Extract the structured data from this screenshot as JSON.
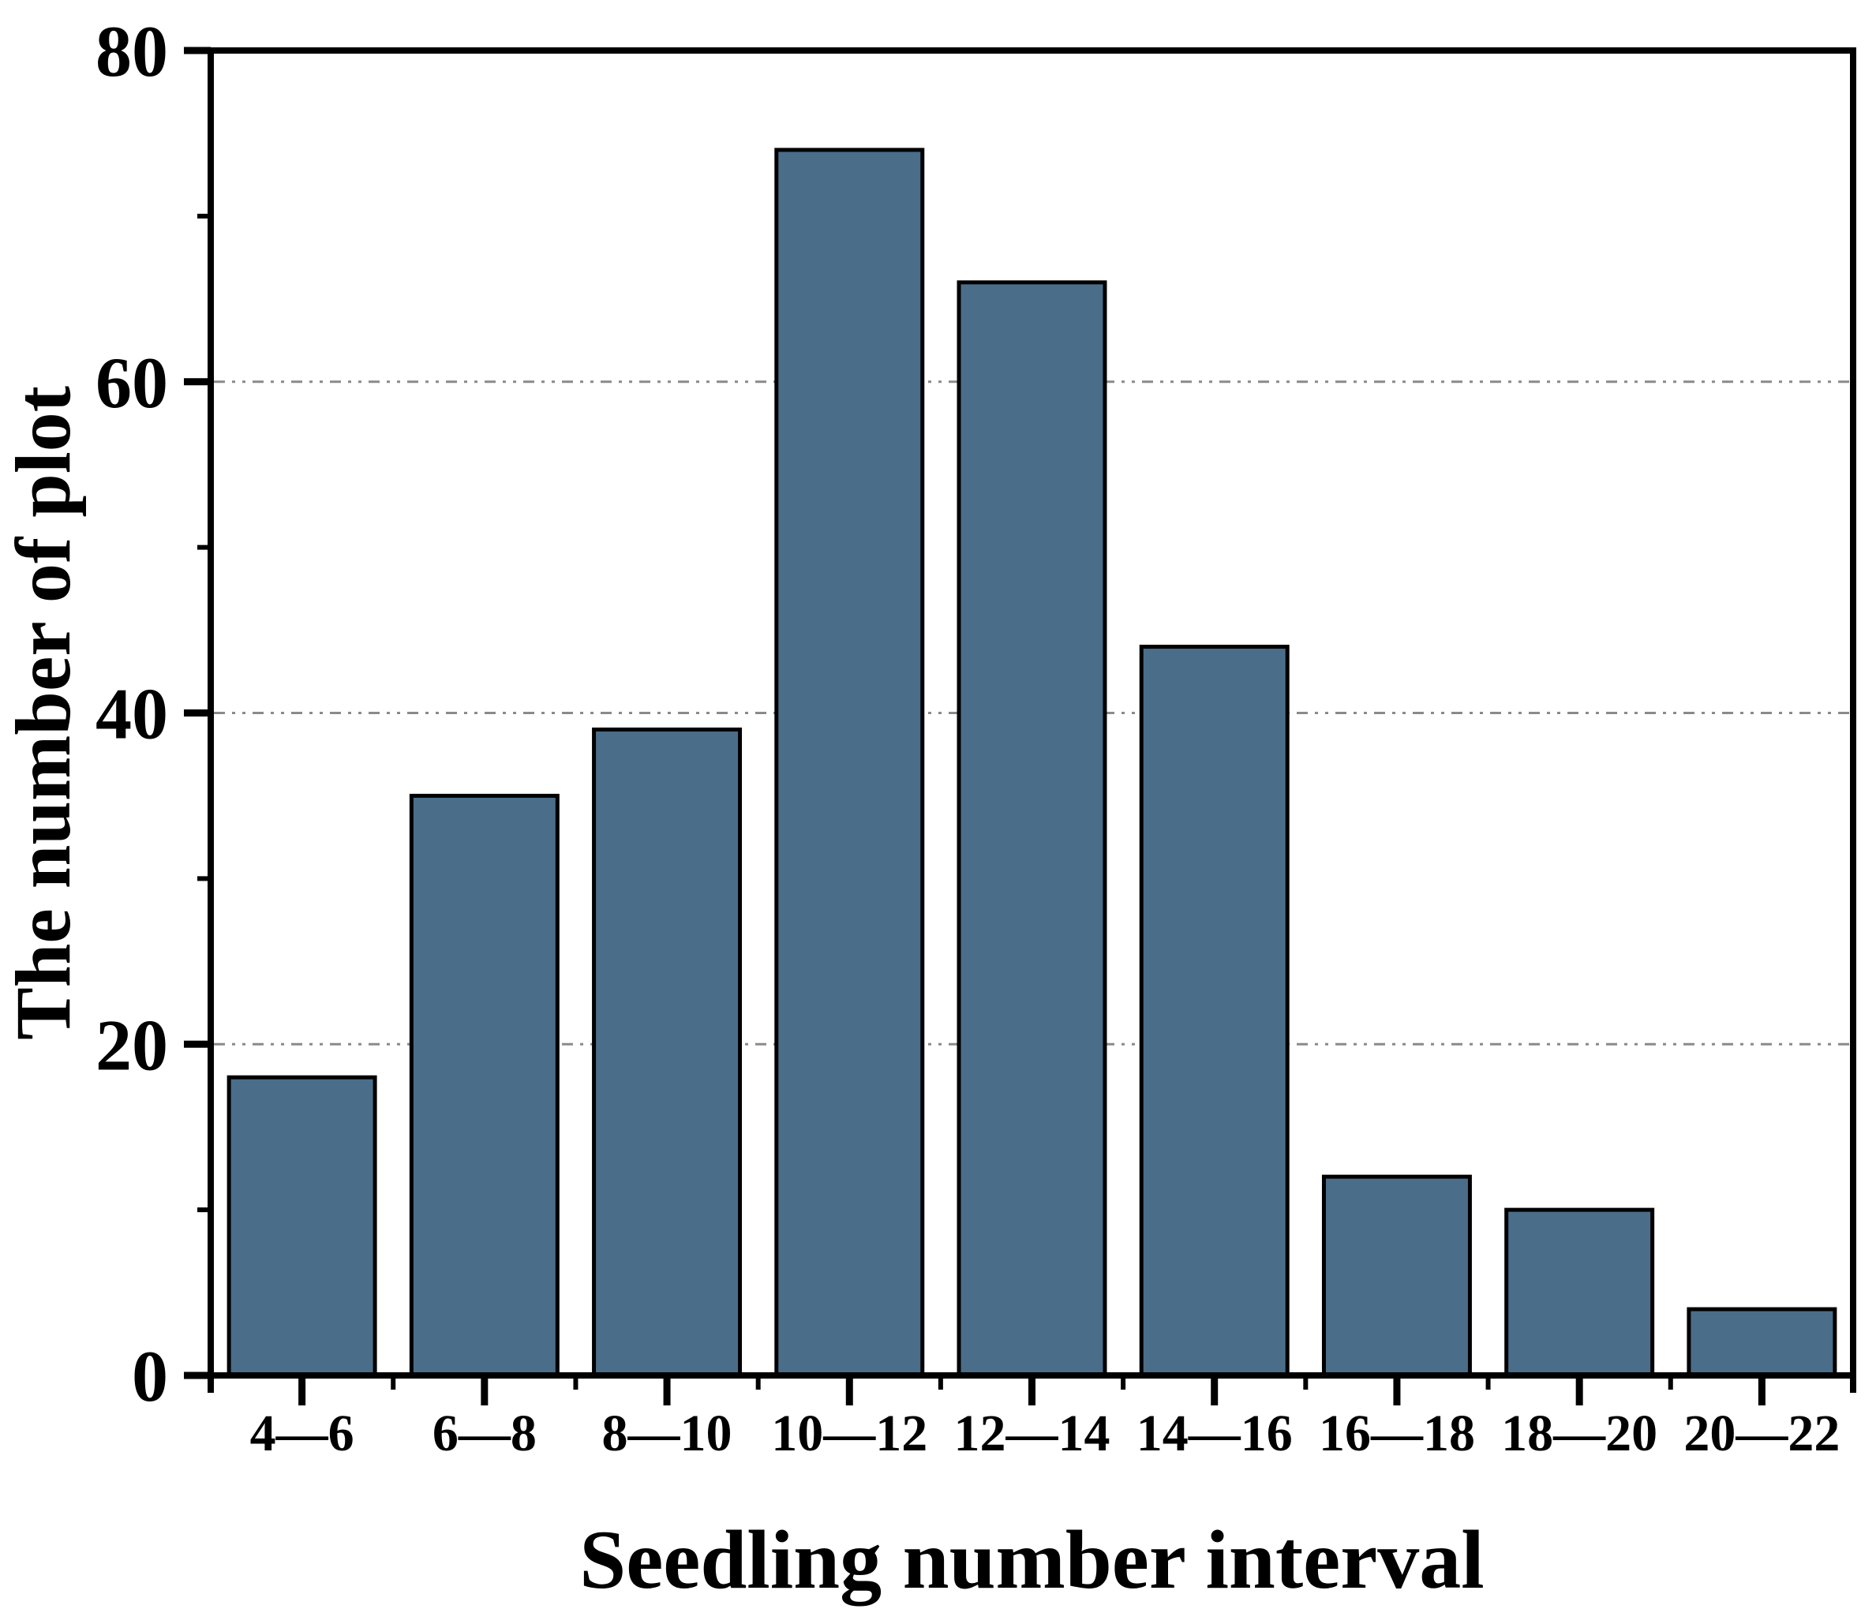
{
  "chart_data": {
    "type": "bar",
    "title": "",
    "xlabel": "Seedling number interval",
    "ylabel": "The number of plot",
    "categories": [
      "4—6",
      "6—8",
      "8—10",
      "10—12",
      "12—14",
      "14—16",
      "16—18",
      "18—20",
      "20—22"
    ],
    "values": [
      18,
      35,
      39,
      74,
      66,
      44,
      12,
      10,
      4
    ],
    "ylim": [
      0,
      80
    ],
    "y_ticks_major": [
      0,
      20,
      40,
      60,
      80
    ],
    "y_ticks_minor": [
      10,
      30,
      50,
      70
    ],
    "gridline_values": [
      20,
      40,
      60
    ],
    "grid_style": "dash-dot",
    "legend": "none",
    "colors": {
      "bar_fill": "#4A6D8A",
      "bar_edge": "#000000",
      "axis": "#000000",
      "grid": "#8A8A8A",
      "background": "#FFFFFF",
      "text": "#000000"
    }
  }
}
